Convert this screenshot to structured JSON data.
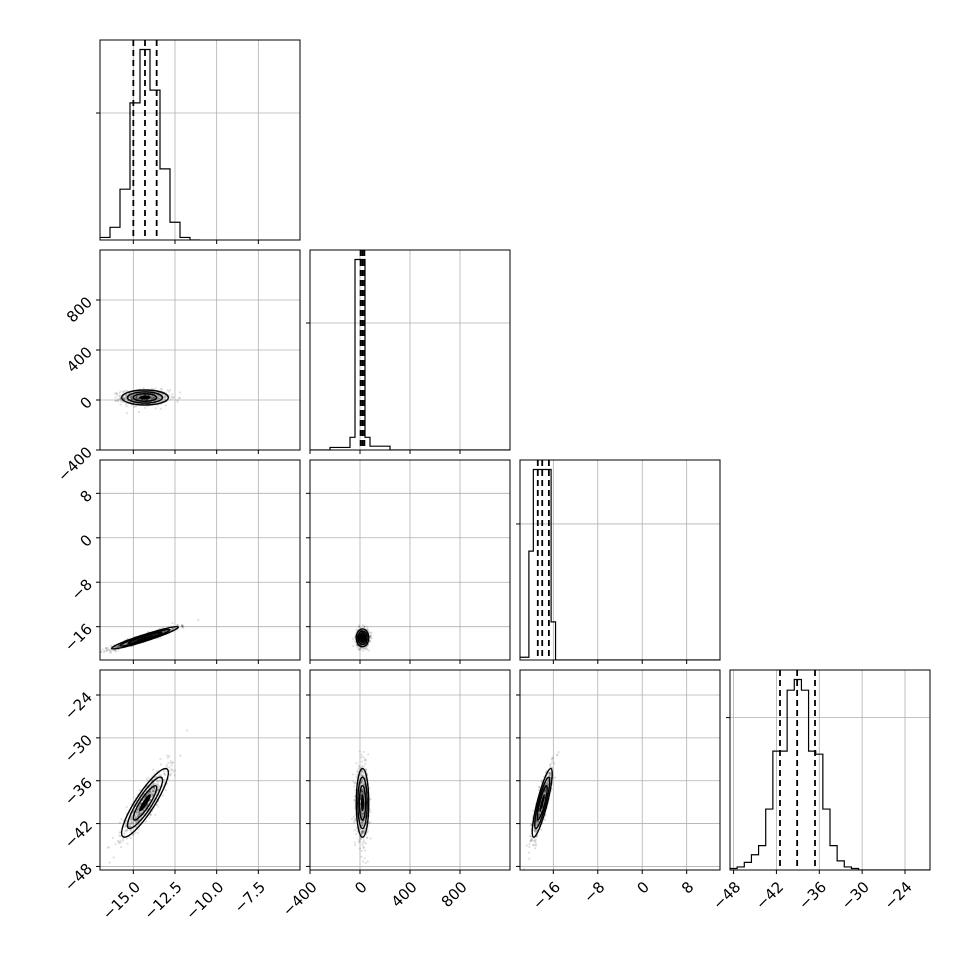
{
  "chart_data": {
    "type": "corner",
    "dimensions": 4,
    "parameters": [
      {
        "index": 0,
        "range": [
          -17,
          -5
        ],
        "ticks": [
          -15.0,
          -12.5,
          -10.0,
          -7.5
        ],
        "tick_labels": [
          "−15.0",
          "−12.5",
          "−10.0",
          "−7.5"
        ],
        "median": -14.3,
        "q16": -15.0,
        "q84": -13.6
      },
      {
        "index": 1,
        "range": [
          -400,
          1200
        ],
        "ticks": [
          -400,
          0,
          400,
          800
        ],
        "tick_labels": [
          "−400",
          "0",
          "400",
          "800"
        ],
        "median": 20,
        "q16": 5,
        "q84": 35
      },
      {
        "index": 2,
        "range": [
          -22,
          14
        ],
        "ticks": [
          -16,
          -8,
          0,
          8
        ],
        "tick_labels": [
          "−16",
          "−8",
          "0",
          "8"
        ],
        "median": -18.0,
        "q16": -18.8,
        "q84": -16.8
      },
      {
        "index": 3,
        "range": [
          -48.5,
          -20.5
        ],
        "ticks": [
          -48,
          -42,
          -36,
          -30,
          -24
        ],
        "tick_labels": [
          "−48",
          "−42",
          "−36",
          "−30",
          "−24"
        ],
        "median": -39.1,
        "q16": -41.5,
        "q84": -36.6
      }
    ],
    "histograms": [
      {
        "param": 0,
        "edges": [
          -17.0,
          -16.4,
          -15.8,
          -15.2,
          -14.6,
          -14.0,
          -13.4,
          -12.8,
          -12.2,
          -11.6,
          -11.0
        ],
        "counts": [
          2,
          10,
          40,
          108,
          150,
          118,
          56,
          14,
          2,
          0
        ]
      },
      {
        "param": 1,
        "edges": [
          -400,
          -240,
          -80,
          -40,
          0,
          40,
          80,
          240,
          400,
          1200
        ],
        "counts": [
          0,
          2,
          10,
          150,
          150,
          10,
          3,
          0,
          0
        ]
      },
      {
        "param": 2,
        "edges": [
          -22.0,
          -20.4,
          -19.6,
          -18.8,
          -18.0,
          -17.2,
          -16.4,
          -15.6,
          -14.8,
          14.0
        ],
        "counts": [
          2,
          80,
          140,
          140,
          140,
          140,
          28,
          0,
          0
        ]
      },
      {
        "param": 3,
        "edges": [
          -48.5,
          -47.5,
          -46.5,
          -45.5,
          -44.5,
          -43.5,
          -42.5,
          -41.5,
          -40.5,
          -39.5,
          -38.5,
          -37.5,
          -36.5,
          -35.5,
          -34.5,
          -33.5,
          -32.5,
          -31.5,
          -30.5,
          -20.5
        ],
        "counts": [
          1,
          2,
          5,
          10,
          16,
          40,
          78,
          78,
          118,
          125,
          118,
          78,
          76,
          40,
          16,
          6,
          2,
          1,
          0
        ]
      }
    ],
    "pairs": [
      {
        "x_param": 0,
        "y_param": 1,
        "center": [
          -14.3,
          20
        ],
        "sigma": [
          0.7,
          30
        ],
        "rho": 0.0
      },
      {
        "x_param": 0,
        "y_param": 2,
        "center": [
          -14.3,
          -18.0
        ],
        "sigma": [
          1.0,
          1.0
        ],
        "rho": 0.95
      },
      {
        "x_param": 1,
        "y_param": 2,
        "center": [
          20,
          -18.0
        ],
        "sigma": [
          25,
          0.8
        ],
        "rho": 0.0
      },
      {
        "x_param": 0,
        "y_param": 3,
        "center": [
          -14.3,
          -39.1
        ],
        "sigma": [
          0.7,
          2.4
        ],
        "rho": 0.88
      },
      {
        "x_param": 1,
        "y_param": 3,
        "center": [
          20,
          -39.1
        ],
        "sigma": [
          25,
          2.4
        ],
        "rho": 0.0
      },
      {
        "x_param": 2,
        "y_param": 3,
        "center": [
          -18.0,
          -39.1
        ],
        "sigma": [
          0.9,
          2.4
        ],
        "rho": 0.85
      }
    ],
    "grid": true,
    "colors": {
      "density_dark": "#000000",
      "density_mid": "#7f7f7f",
      "density_light": "#bfbfbf",
      "scatter": "#000000"
    }
  }
}
